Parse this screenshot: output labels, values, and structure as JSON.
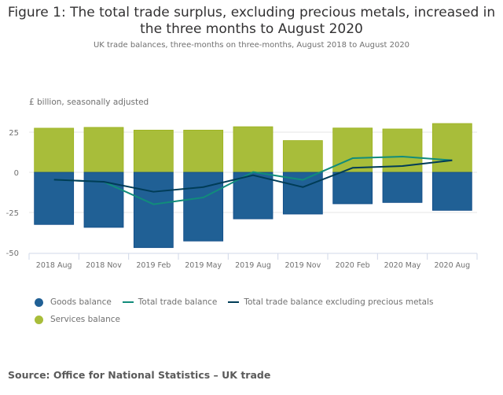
{
  "title": "Figure 1: The total trade surplus, excluding precious metals, increased in the three months to August 2020",
  "subtitle": "UK trade balances, three-months on three-months, August 2018 to August 2020",
  "units": "£ billion, seasonally adjusted",
  "source": "Source: Office for National Statistics – UK trade",
  "colors": {
    "goods": "#206095",
    "services": "#A8BD3A",
    "total": "#118C7B",
    "total_ex_pm": "#003C57"
  },
  "legend": {
    "goods": "Goods balance",
    "total": "Total trade balance",
    "total_ex_pm": "Total trade balance excluding precious metals",
    "services": "Services balance"
  },
  "chart_data": {
    "type": "bar",
    "stacked": true,
    "title": "Figure 1: The total trade surplus, excluding precious metals, increased in the three months to August 2020",
    "subtitle": "UK trade balances, three-months on three-months, August 2018 to August 2020",
    "xlabel": "",
    "ylabel": "£ billion, seasonally adjusted",
    "ylim": [
      -50,
      30
    ],
    "yticks": [
      25,
      0,
      -25,
      -50
    ],
    "grid": true,
    "legend_position": "bottom",
    "categories": [
      "2018 Aug",
      "2018 Nov",
      "2019 Feb",
      "2019 May",
      "2019 Aug",
      "2019 Nov",
      "2020 Feb",
      "2020 May",
      "2020 Aug"
    ],
    "series": [
      {
        "name": "Goods balance",
        "type": "bar",
        "values": [
          -32.5,
          -34.3,
          -46.9,
          -42.8,
          -29.0,
          -26.0,
          -19.6,
          -18.8,
          -23.7
        ]
      },
      {
        "name": "Services balance",
        "type": "bar",
        "values": [
          27.5,
          28.0,
          26.3,
          26.3,
          28.4,
          19.8,
          27.6,
          27.0,
          30.4
        ]
      },
      {
        "name": "Total trade balance",
        "type": "line",
        "values": [
          -4.6,
          -5.9,
          -19.9,
          -15.7,
          0.2,
          -4.7,
          8.8,
          9.8,
          7.5
        ]
      },
      {
        "name": "Total trade balance excluding precious metals",
        "type": "line",
        "values": [
          -4.6,
          -5.9,
          -12.1,
          -9.2,
          -1.8,
          -9.2,
          2.8,
          3.9,
          7.5
        ]
      }
    ]
  }
}
